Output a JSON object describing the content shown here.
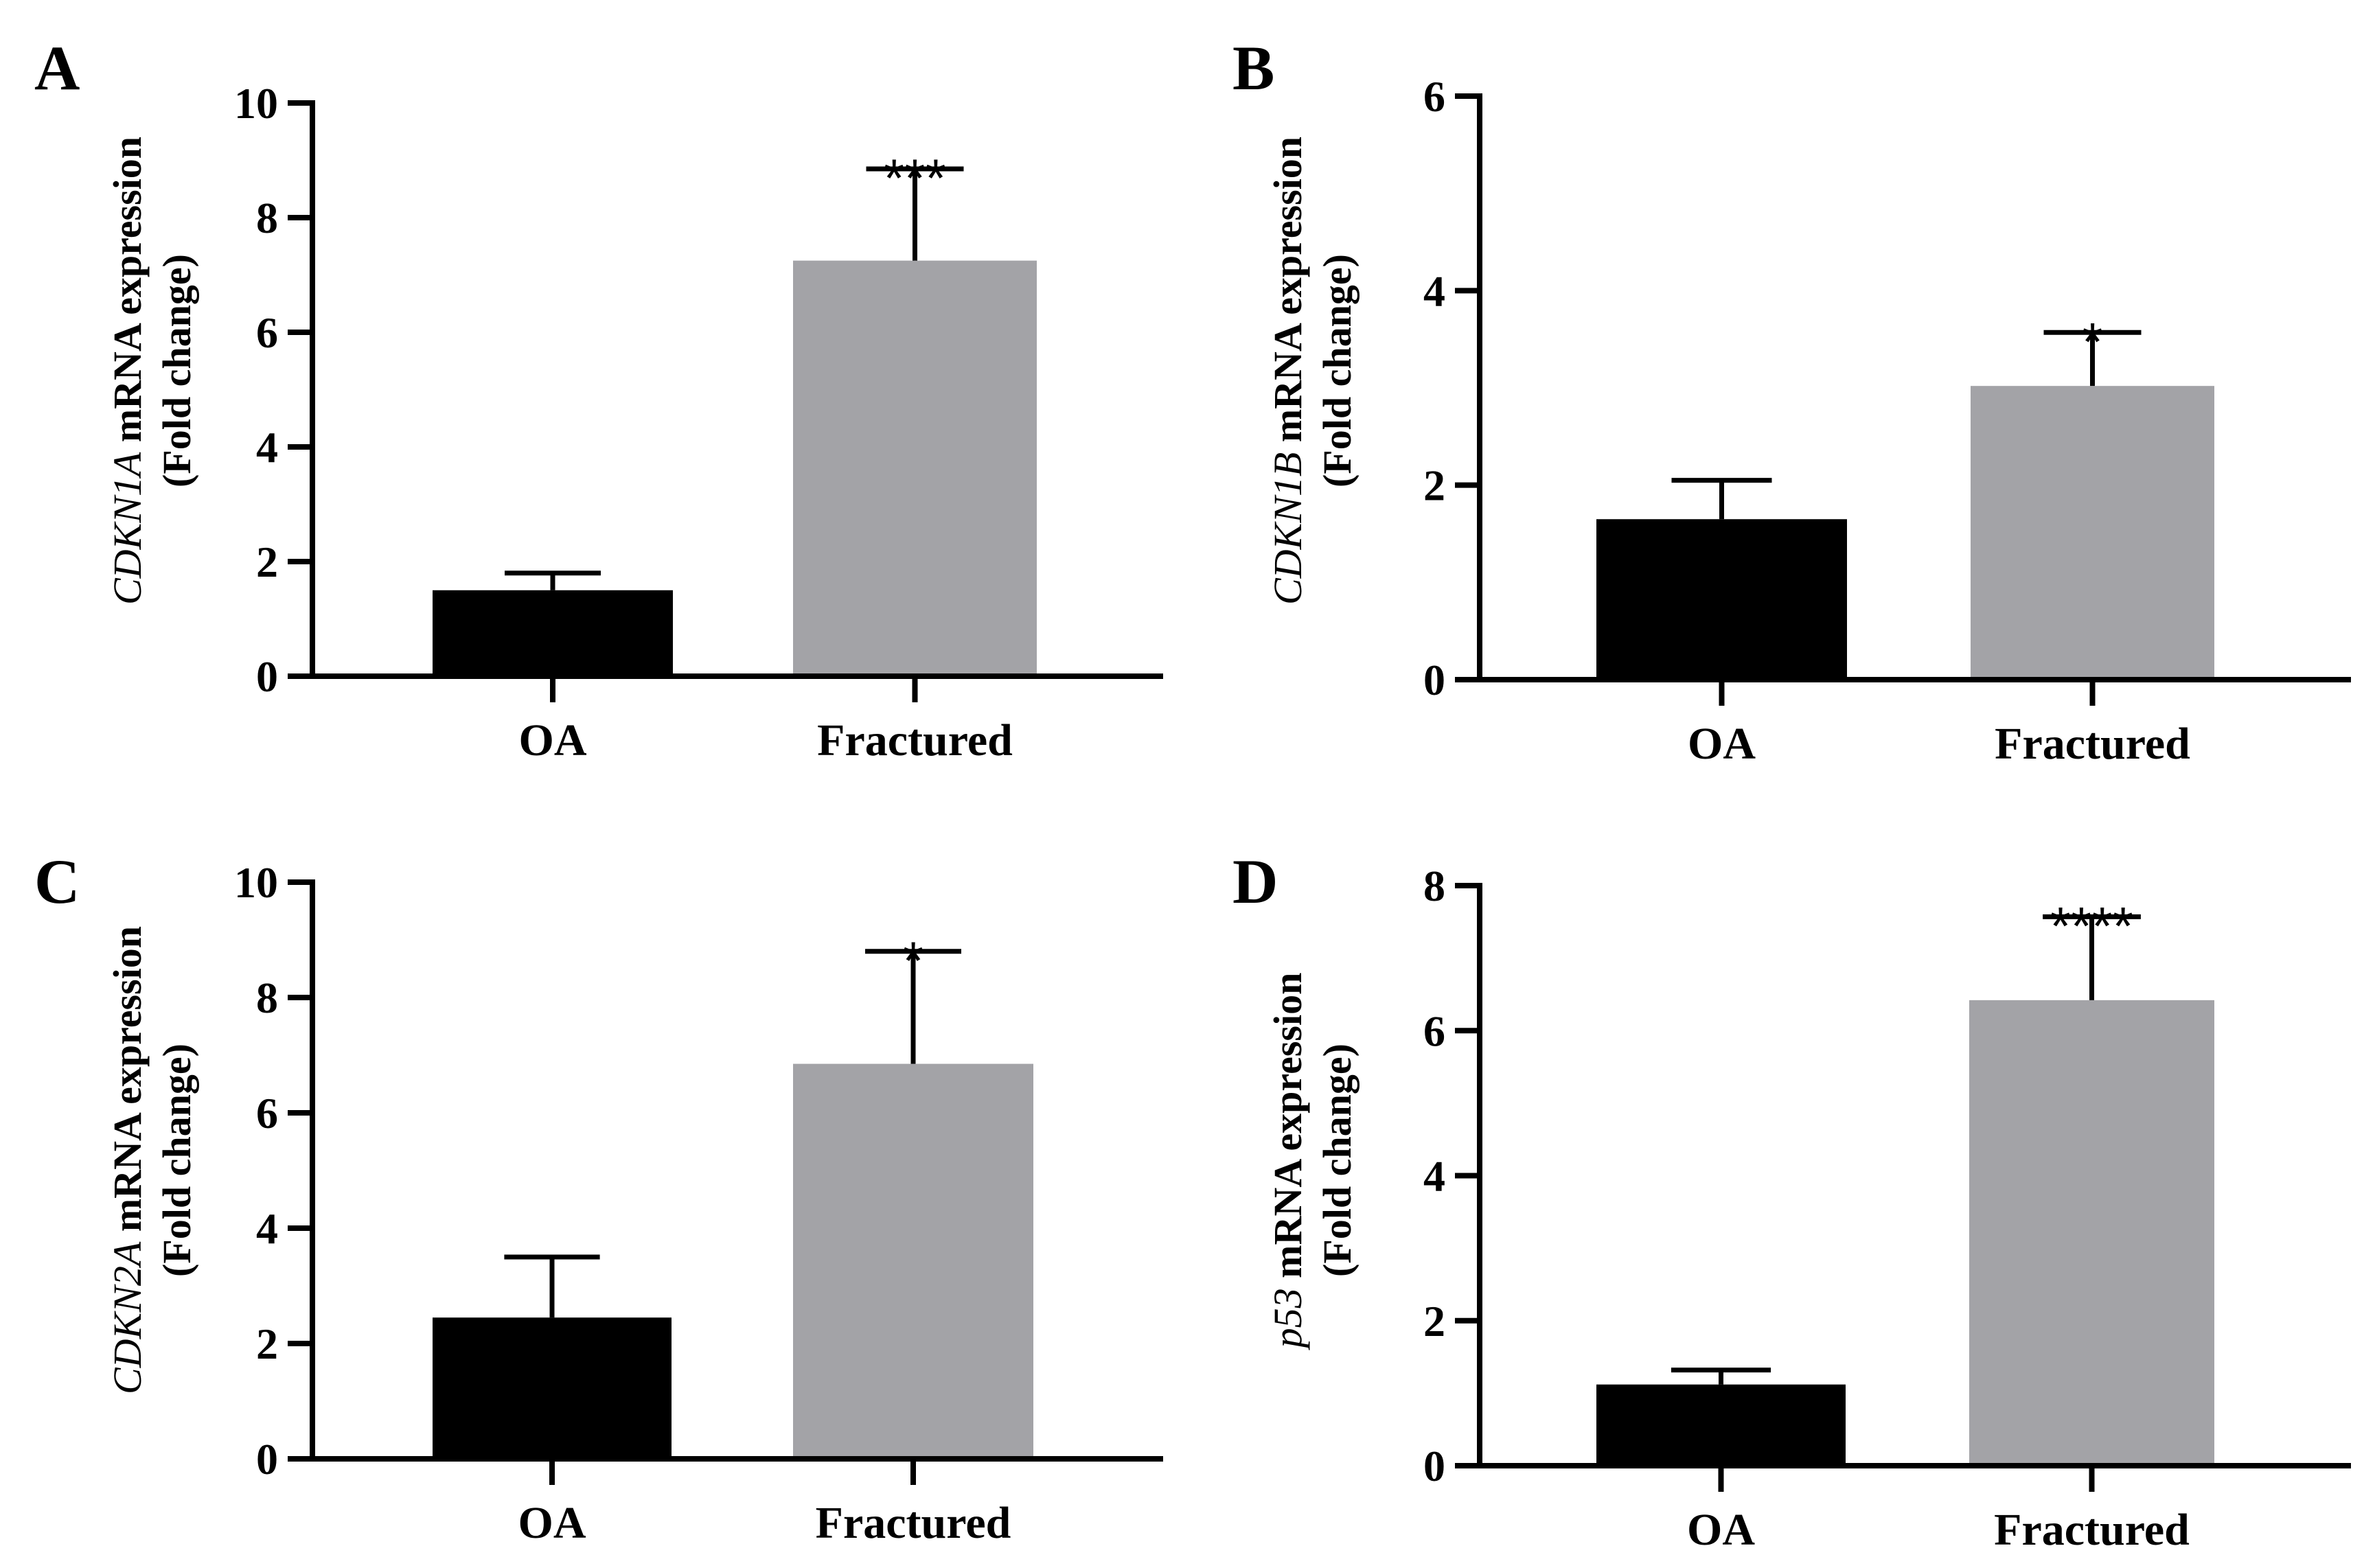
{
  "colors": {
    "OA": "#000000",
    "Fractured": "#a3a3a7",
    "axis": "#000000"
  },
  "chart_data": [
    {
      "panel": "A",
      "type": "bar",
      "ylabel_gene": "CDKN1A",
      "ylabel_rest": " mRNA expression",
      "ylabel_line2": "(Fold change)",
      "categories": [
        "OA",
        "Fractured"
      ],
      "values": [
        1.5,
        7.25
      ],
      "errors": [
        0.3,
        1.6
      ],
      "significance": [
        "",
        "***"
      ],
      "ylim": [
        0,
        10
      ],
      "yticks": [
        0,
        2,
        4,
        6,
        8,
        10
      ]
    },
    {
      "panel": "B",
      "type": "bar",
      "ylabel_gene": "CDKN1B",
      "ylabel_rest": " mRNA expression",
      "ylabel_line2": "(Fold change)",
      "categories": [
        "OA",
        "Fractured"
      ],
      "values": [
        1.65,
        3.02
      ],
      "errors": [
        0.4,
        0.55
      ],
      "significance": [
        "",
        "*"
      ],
      "ylim": [
        0,
        6
      ],
      "yticks": [
        0,
        2,
        4,
        6
      ]
    },
    {
      "panel": "C",
      "type": "bar",
      "ylabel_gene": "CDKN2A",
      "ylabel_rest": " mRNA expression",
      "ylabel_line2": "(Fold change)",
      "categories": [
        "OA",
        "Fractured"
      ],
      "values": [
        2.45,
        6.85
      ],
      "errors": [
        1.05,
        1.95
      ],
      "significance": [
        "",
        "*"
      ],
      "ylim": [
        0,
        10
      ],
      "yticks": [
        0,
        2,
        4,
        6,
        8,
        10
      ]
    },
    {
      "panel": "D",
      "type": "bar",
      "ylabel_gene": "p53",
      "ylabel_rest": " mRNA expression",
      "ylabel_line2": "(Fold change)",
      "categories": [
        "OA",
        "Fractured"
      ],
      "values": [
        1.12,
        6.42
      ],
      "errors": [
        0.2,
        1.15
      ],
      "significance": [
        "",
        "****"
      ],
      "ylim": [
        0,
        8
      ],
      "yticks": [
        0,
        2,
        4,
        6,
        8
      ]
    }
  ]
}
